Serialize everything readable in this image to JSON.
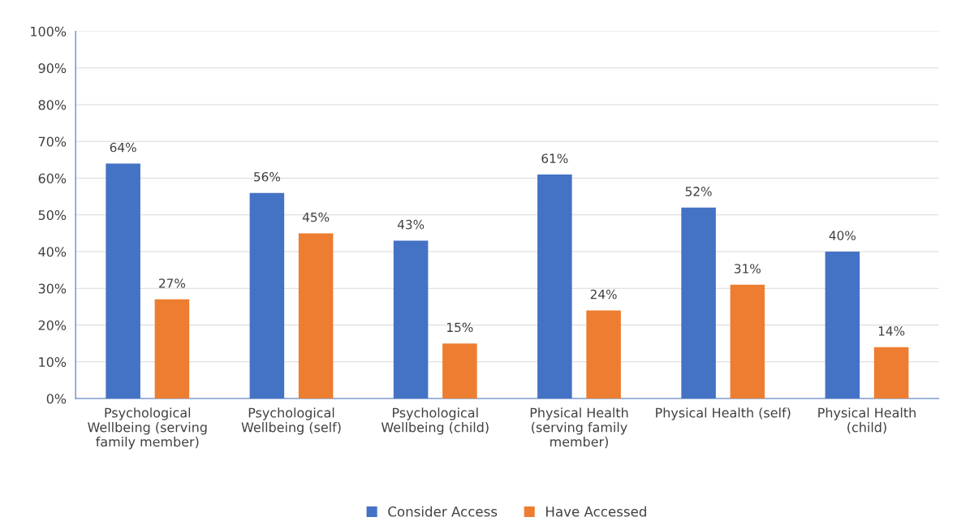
{
  "chart_data": {
    "type": "bar",
    "categories": [
      "Psychological Wellbeing (serving family member)",
      "Psychological Wellbeing (self)",
      "Psychological Wellbeing (child)",
      "Physical Health (serving family member)",
      "Physical Health (self)",
      "Physical Health (child)"
    ],
    "series": [
      {
        "name": "Consider Access",
        "color": "#4472c4",
        "values": [
          64,
          56,
          43,
          61,
          52,
          40
        ],
        "value_labels": [
          "64%",
          "56%",
          "43%",
          "61%",
          "52%",
          "40%"
        ]
      },
      {
        "name": "Have Accessed",
        "color": "#ed7d31",
        "values": [
          27,
          45,
          15,
          24,
          31,
          14
        ],
        "value_labels": [
          "27%",
          "45%",
          "15%",
          "24%",
          "31%",
          "14%"
        ]
      }
    ],
    "ylim": [
      0,
      100
    ],
    "yticks": [
      {
        "value": 0,
        "label": "0%"
      },
      {
        "value": 10,
        "label": "10%"
      },
      {
        "value": 20,
        "label": "20%"
      },
      {
        "value": 30,
        "label": "30%"
      },
      {
        "value": 40,
        "label": "40%"
      },
      {
        "value": 50,
        "label": "50%"
      },
      {
        "value": 60,
        "label": "60%"
      },
      {
        "value": 70,
        "label": "70%"
      },
      {
        "value": 80,
        "label": "80%"
      },
      {
        "value": 90,
        "label": "90%"
      },
      {
        "value": 100,
        "label": "100%"
      }
    ],
    "grid": "y",
    "legend": "bottom"
  }
}
